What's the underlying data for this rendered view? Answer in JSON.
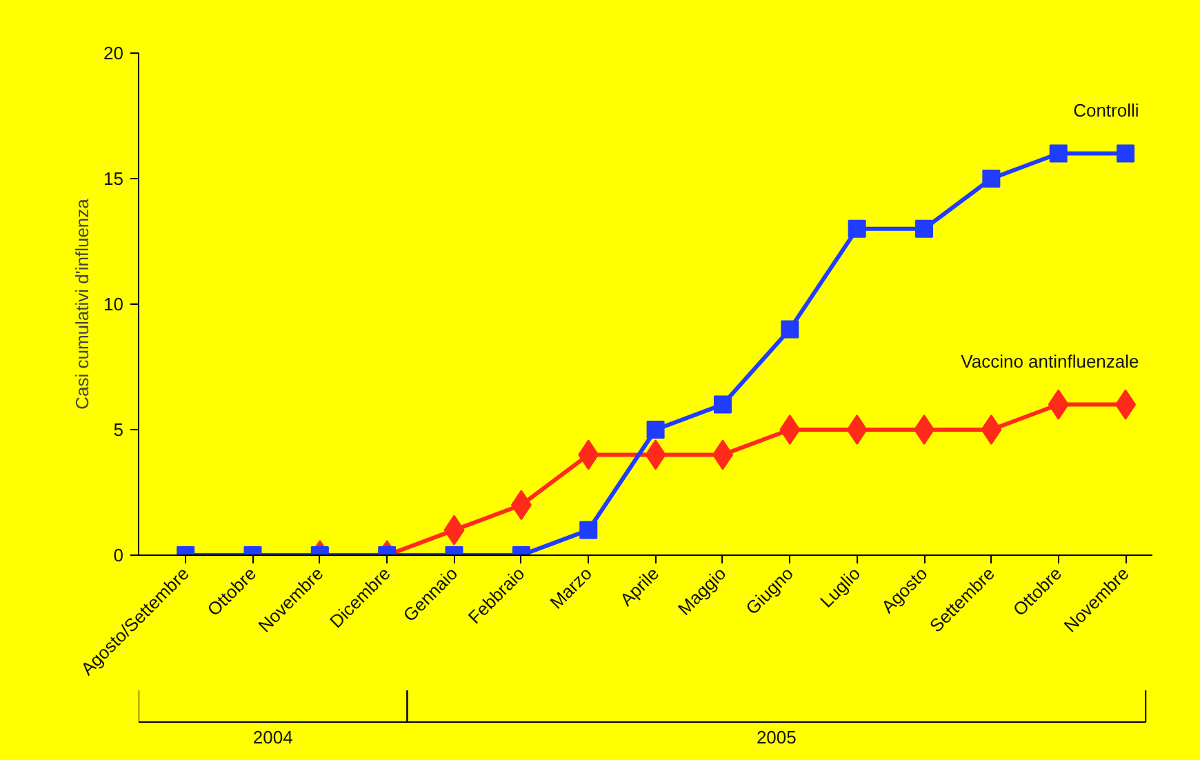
{
  "chart_data": {
    "type": "line",
    "ylabel": "Casi cumulativi d'influenza",
    "categories": [
      "Agosto/Settembre",
      "Ottobre",
      "Novembre",
      "Dicembre",
      "Gennaio",
      "Febbraio",
      "Marzo",
      "Aprile",
      "Maggio",
      "Giugno",
      "Luglio",
      "Agosto",
      "Settembre",
      "Ottobre",
      "Novembre"
    ],
    "ylim": [
      0,
      20
    ],
    "yticks": [
      0,
      5,
      10,
      15,
      20
    ],
    "grid": false,
    "legend": false,
    "line_style": "solid",
    "series": [
      {
        "name": "Vaccino antinfluenzale",
        "color": "#ff2a1a",
        "marker": "diamond",
        "values": [
          null,
          null,
          0,
          0,
          1,
          2,
          4,
          4,
          4,
          5,
          5,
          5,
          5,
          6,
          6
        ]
      },
      {
        "name": "Controlli",
        "color": "#1f3cff",
        "marker": "square",
        "values": [
          0,
          0,
          0,
          0,
          0,
          0,
          1,
          5,
          6,
          9,
          13,
          13,
          15,
          16,
          16
        ]
      }
    ],
    "annotations": [
      "2004",
      "2005"
    ]
  }
}
